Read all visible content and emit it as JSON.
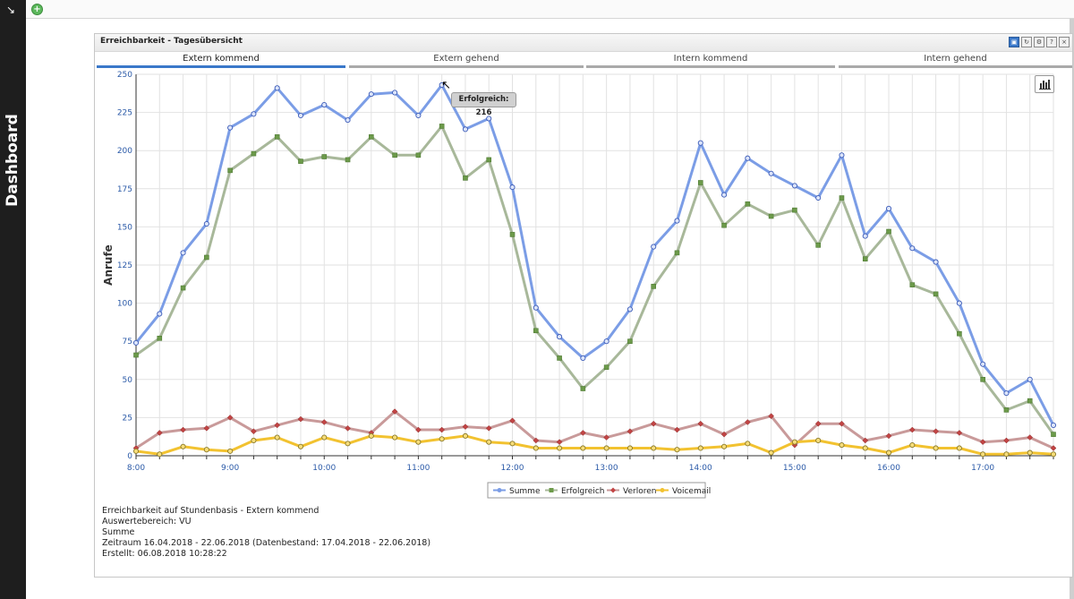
{
  "sidebar": {
    "label": "Dashboard",
    "corner_icon": "resize-arrow-icon"
  },
  "topbar": {
    "add_icon": "add-plus-icon"
  },
  "panel": {
    "title": "Erreichbarkeit - Tagesübersicht",
    "tools": [
      "copy-icon",
      "refresh-icon",
      "settings-icon",
      "help-icon",
      "close-icon"
    ],
    "tabs": [
      {
        "label": "Extern kommend",
        "active": true
      },
      {
        "label": "Extern gehend",
        "active": false
      },
      {
        "label": "Intern kommend",
        "active": false
      },
      {
        "label": "Intern gehend",
        "active": false
      }
    ]
  },
  "tooltip": {
    "text": "Erfolgreich: 216"
  },
  "info": {
    "line1": "Erreichbarkeit auf Stundenbasis - Extern kommend",
    "line2": "Auswertebereich: VU",
    "line3": "Summe",
    "line4": "Zeitraum 16.04.2018 - 22.06.2018 (Datenbestand: 17.04.2018 - 22.06.2018)",
    "line5": "Erstellt: 06.08.2018 10:28:22"
  },
  "chart_data": {
    "type": "line",
    "ylabel": "Anrufe",
    "xlabel": "",
    "ylim": [
      0,
      250
    ],
    "yticks": [
      0,
      25,
      50,
      75,
      100,
      125,
      150,
      175,
      200,
      225,
      250
    ],
    "xticks": [
      "8:00",
      "9:00",
      "10:00",
      "11:00",
      "12:00",
      "13:00",
      "14:00",
      "15:00",
      "16:00",
      "17:00"
    ],
    "points_per_hour": 4,
    "grid": true,
    "legend_position": "bottom-center",
    "series": [
      {
        "name": "Summe",
        "color": "#7b9de6",
        "marker": "circle",
        "values": [
          74,
          93,
          133,
          152,
          215,
          224,
          241,
          223,
          230,
          220,
          237,
          238,
          223,
          243,
          214,
          221,
          176,
          97,
          78,
          64,
          75,
          96,
          137,
          154,
          205,
          171,
          195,
          185,
          177,
          169,
          197,
          144,
          162,
          136,
          127,
          100,
          60,
          41,
          50,
          20
        ]
      },
      {
        "name": "Erfolgreich",
        "color": "#a8b89a",
        "marker": "square",
        "values": [
          66,
          77,
          110,
          130,
          187,
          198,
          209,
          193,
          196,
          194,
          209,
          197,
          197,
          216,
          182,
          194,
          145,
          82,
          64,
          44,
          58,
          75,
          111,
          133,
          179,
          151,
          165,
          157,
          161,
          138,
          169,
          129,
          147,
          112,
          106,
          80,
          50,
          30,
          36,
          14
        ]
      },
      {
        "name": "Verloren",
        "color": "#c99a9a",
        "marker": "diamond",
        "values": [
          5,
          15,
          17,
          18,
          25,
          16,
          20,
          24,
          22,
          18,
          15,
          29,
          17,
          17,
          19,
          18,
          23,
          10,
          9,
          15,
          12,
          16,
          21,
          17,
          21,
          14,
          22,
          26,
          7,
          21,
          21,
          10,
          13,
          17,
          16,
          15,
          9,
          10,
          12,
          5
        ]
      },
      {
        "name": "Voicemail",
        "color": "#f2c230",
        "marker": "circle",
        "values": [
          3,
          1,
          6,
          4,
          3,
          10,
          12,
          6,
          12,
          8,
          13,
          12,
          9,
          11,
          13,
          9,
          8,
          5,
          5,
          5,
          5,
          5,
          5,
          4,
          5,
          6,
          8,
          2,
          9,
          10,
          7,
          5,
          2,
          7,
          5,
          5,
          1,
          1,
          2,
          1
        ]
      }
    ]
  }
}
